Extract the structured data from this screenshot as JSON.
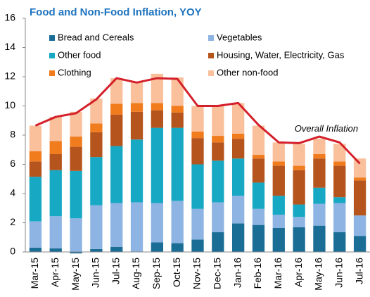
{
  "chart_data": {
    "type": "bar",
    "stacked": true,
    "title": "Food and Non-Food Inflation, YOY",
    "categories": [
      "Mar-15",
      "Apr-15",
      "May-15",
      "Jun-15",
      "Jul-15",
      "Aug-15",
      "Sep-15",
      "Oct-15",
      "Nov-15",
      "Dec-15",
      "Jan-16",
      "Feb-16",
      "Mar-16",
      "Apr-16",
      "May-16",
      "Jun-16",
      "Jul-16"
    ],
    "series": [
      {
        "name": "Bread and Cereals",
        "type": "bar",
        "color": "#1a6e96",
        "values": [
          0.3,
          0.25,
          -0.1,
          0.2,
          0.35,
          0,
          0.65,
          0.6,
          0.85,
          1.35,
          1.95,
          1.85,
          1.65,
          1.7,
          1.8,
          1.35,
          1.1
        ]
      },
      {
        "name": "Vegetables",
        "type": "bar",
        "color": "#8db4e2",
        "values": [
          1.8,
          2.2,
          2.3,
          3.0,
          3.0,
          3.4,
          2.7,
          2.9,
          2.1,
          2.05,
          1.9,
          1.1,
          0.9,
          0.7,
          1.5,
          2.0,
          1.4
        ]
      },
      {
        "name": "Other food",
        "type": "bar",
        "color": "#17a8c4",
        "values": [
          3.05,
          3.15,
          3.25,
          3.3,
          3.9,
          4.3,
          5.15,
          5.0,
          3.05,
          2.85,
          2.55,
          1.8,
          1.3,
          0.85,
          1.1,
          0.4,
          0
        ]
      },
      {
        "name": "Housing, Water, Electricity, Gas",
        "type": "bar",
        "color": "#b5541c",
        "values": [
          1.05,
          1.1,
          1.65,
          1.7,
          2.15,
          1.9,
          1.2,
          1.05,
          1.8,
          1.25,
          1.35,
          1.65,
          2.05,
          2.35,
          2.0,
          2.15,
          2.4
        ]
      },
      {
        "name": "Clothing",
        "type": "bar",
        "color": "#f07c1e",
        "values": [
          0.7,
          0.9,
          0.7,
          0.6,
          0.75,
          0.6,
          0.5,
          0.45,
          0.45,
          0.45,
          0.35,
          0.25,
          0.3,
          0.3,
          0.3,
          0.3,
          0.2
        ]
      },
      {
        "name": "Other non-food",
        "type": "bar",
        "color": "#f9c09b",
        "values": [
          1.75,
          1.65,
          1.7,
          1.7,
          1.75,
          1.45,
          2.0,
          1.95,
          1.75,
          2.05,
          2.1,
          2.0,
          1.3,
          1.5,
          1.05,
          1.2,
          1.3
        ]
      },
      {
        "name": "Overall  Inflation",
        "type": "line",
        "color": "#d4202a",
        "values": [
          8.65,
          9.25,
          9.5,
          10.45,
          11.9,
          11.6,
          11.9,
          11.85,
          10.0,
          10.0,
          10.2,
          8.7,
          7.5,
          7.45,
          7.9,
          7.5,
          6.05
        ]
      }
    ],
    "ylim": [
      0,
      16
    ],
    "yticks": [
      0,
      2,
      4,
      6,
      8,
      10,
      12,
      14,
      16
    ],
    "grid": false
  }
}
